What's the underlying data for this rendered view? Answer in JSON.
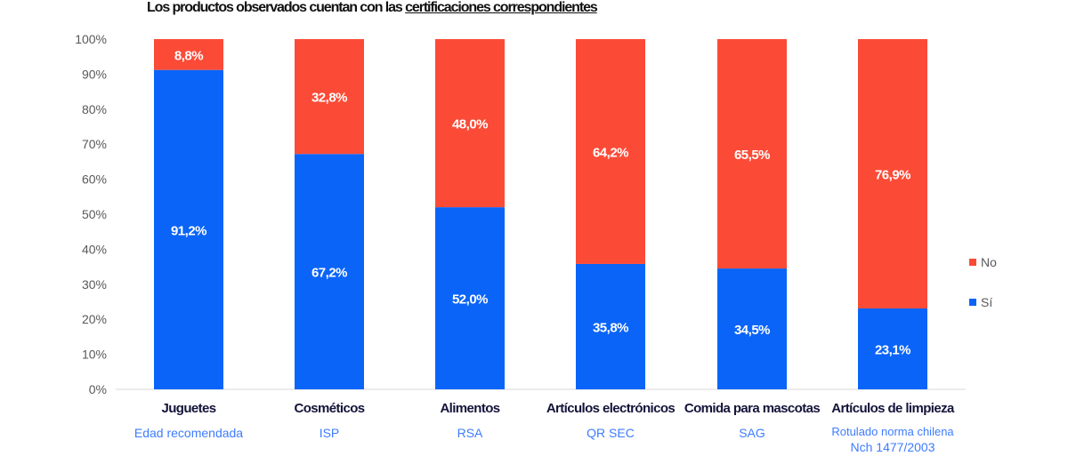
{
  "chart_data": {
    "type": "bar",
    "stacked": true,
    "title_prefix": "Los productos observados cuentan con las",
    "title_underlined": "certificaciones correspondientes",
    "categories": [
      "Juguetes",
      "Cosméticos",
      "Alimentos",
      "Artículos electrónicos",
      "Comida para mascotas",
      "Artículos de limpieza"
    ],
    "sublabels": [
      "Edad recomendada",
      "ISP",
      "RSA",
      "QR SEC",
      "SAG",
      "Rotulado norma chilena Nch 1477/2003"
    ],
    "series": [
      {
        "name": "Sí",
        "color": "#0a64f8",
        "values": [
          91.2,
          67.2,
          52.0,
          35.8,
          34.5,
          23.1
        ],
        "labels": [
          "91,2%",
          "67,2%",
          "52,0%",
          "35,8%",
          "34,5%",
          "23,1%"
        ]
      },
      {
        "name": "No",
        "color": "#fb4b37",
        "values": [
          8.8,
          32.8,
          48.0,
          64.2,
          65.5,
          76.9
        ],
        "labels": [
          "8,8%",
          "32,8%",
          "48,0%",
          "64,2%",
          "65,5%",
          "76,9%"
        ]
      }
    ],
    "yticks": [
      "0%",
      "10%",
      "20%",
      "30%",
      "40%",
      "50%",
      "60%",
      "70%",
      "80%",
      "90%",
      "100%"
    ],
    "ylim": [
      0,
      100
    ],
    "legend": {
      "position": "right",
      "entries": [
        "No",
        "Sí"
      ]
    }
  }
}
